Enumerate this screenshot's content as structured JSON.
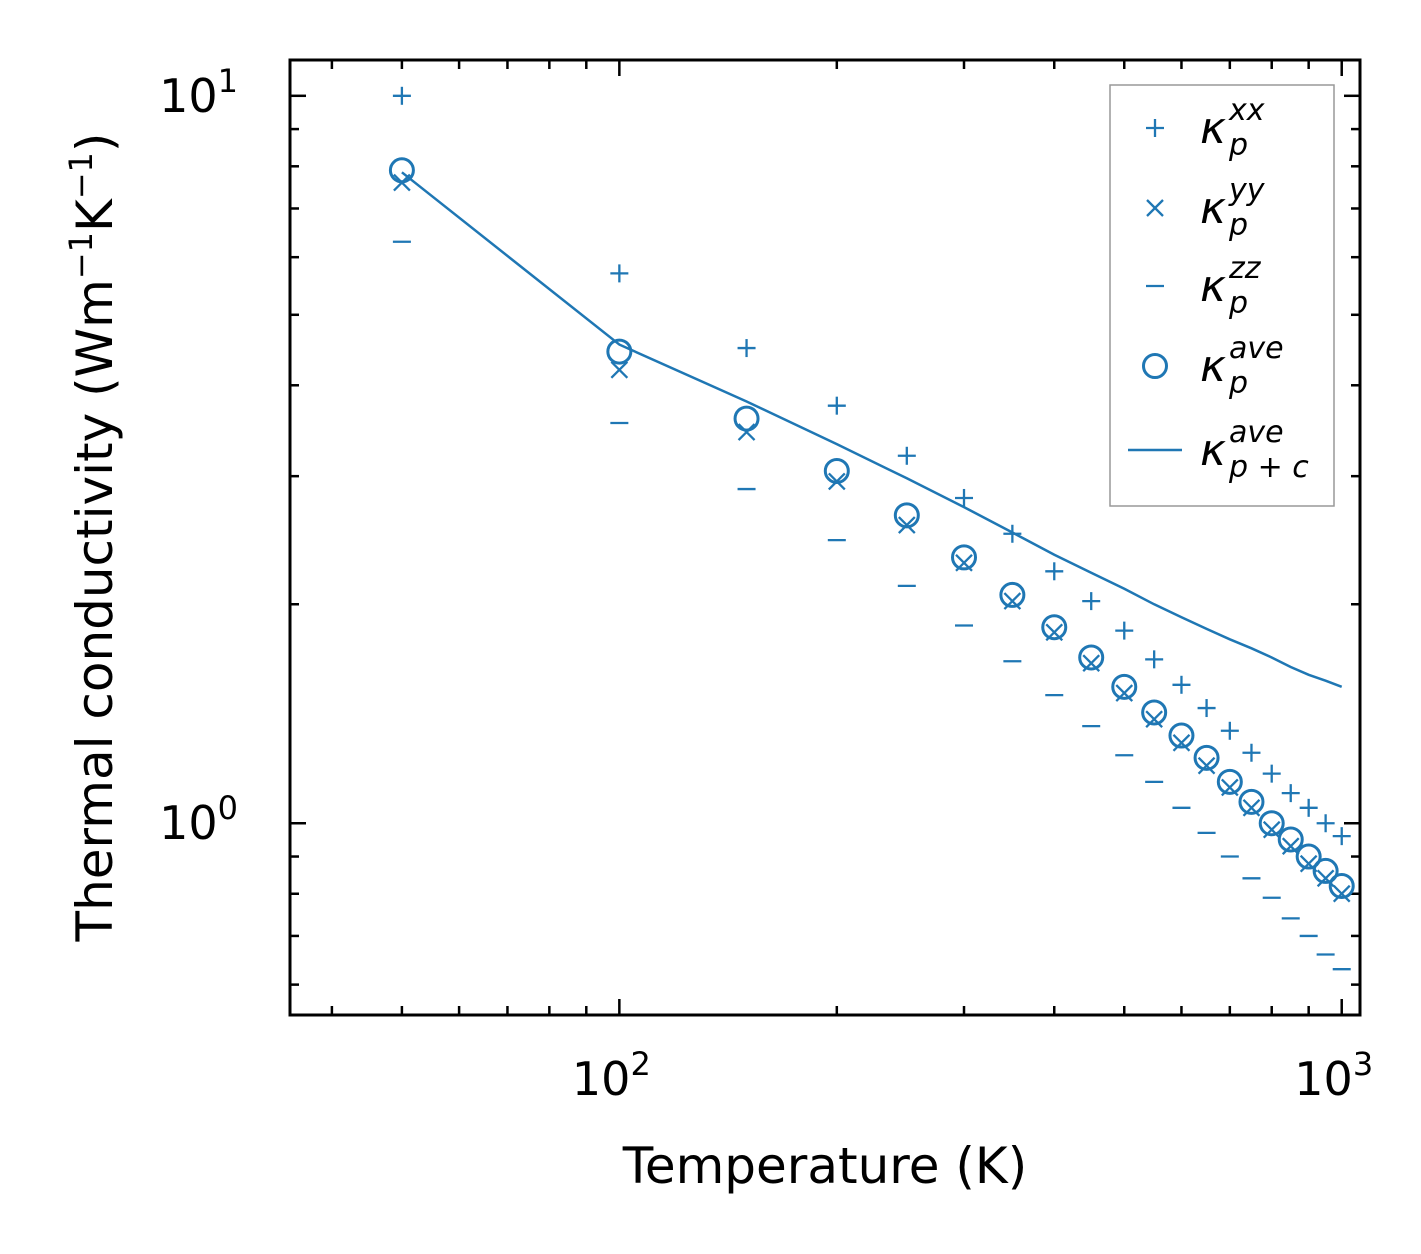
{
  "chart_data": {
    "type": "scatter",
    "title": "",
    "xlabel": "Temperature (K)",
    "ylabel": {
      "main": "Thermal conductivity (Wm",
      "exp1": "−1",
      "mid": "K",
      "exp2": "−1",
      "end": ")"
    },
    "xscale": "log",
    "yscale": "log",
    "xlim": [
      35,
      1060
    ],
    "ylim": [
      0.545,
      11.2
    ],
    "xticks": [
      {
        "value": 100,
        "base": "10",
        "exp": "2"
      },
      {
        "value": 1000,
        "base": "10",
        "exp": "3"
      }
    ],
    "yticks": [
      {
        "value": 1,
        "base": "10",
        "exp": "0"
      },
      {
        "value": 10,
        "base": "10",
        "exp": "1"
      }
    ],
    "grid": false,
    "legend_position": "top-right",
    "color": "#1f77b4",
    "x": [
      50,
      100,
      150,
      200,
      250,
      300,
      350,
      400,
      450,
      500,
      550,
      600,
      650,
      700,
      750,
      800,
      850,
      900,
      950,
      1000
    ],
    "series": [
      {
        "name": "kappa_p^xx",
        "legend": {
          "symbol": "κ",
          "sub": "p",
          "sup": "xx"
        },
        "marker": "plus",
        "values": [
          10.0,
          5.7,
          4.5,
          3.75,
          3.2,
          2.8,
          2.5,
          2.22,
          2.02,
          1.84,
          1.68,
          1.55,
          1.44,
          1.34,
          1.25,
          1.17,
          1.1,
          1.05,
          1.0,
          0.96
        ]
      },
      {
        "name": "kappa_p^yy",
        "legend": {
          "symbol": "κ",
          "sub": "p",
          "sup": "yy"
        },
        "marker": "x",
        "values": [
          7.6,
          4.2,
          3.45,
          2.95,
          2.57,
          2.28,
          2.02,
          1.83,
          1.66,
          1.51,
          1.39,
          1.29,
          1.2,
          1.12,
          1.05,
          0.98,
          0.93,
          0.88,
          0.84,
          0.8
        ]
      },
      {
        "name": "kappa_p^zz",
        "legend": {
          "symbol": "κ",
          "sub": "p",
          "sup": "zz"
        },
        "marker": "hline",
        "values": [
          6.3,
          3.55,
          2.88,
          2.45,
          2.12,
          1.87,
          1.67,
          1.5,
          1.36,
          1.24,
          1.14,
          1.05,
          0.97,
          0.9,
          0.84,
          0.79,
          0.74,
          0.7,
          0.66,
          0.63
        ]
      },
      {
        "name": "kappa_p^ave",
        "legend": {
          "symbol": "κ",
          "sub": "p",
          "sup": "ave"
        },
        "marker": "circle",
        "values": [
          7.9,
          4.45,
          3.6,
          3.05,
          2.65,
          2.32,
          2.06,
          1.86,
          1.69,
          1.54,
          1.42,
          1.32,
          1.23,
          1.14,
          1.07,
          1.0,
          0.95,
          0.9,
          0.86,
          0.82
        ]
      },
      {
        "name": "kappa_p+c^ave",
        "legend": {
          "symbol": "κ",
          "sub": "p + c",
          "sup": "ave"
        },
        "marker": "line",
        "values": [
          7.85,
          4.55,
          3.8,
          3.32,
          2.98,
          2.72,
          2.51,
          2.34,
          2.21,
          2.1,
          2.0,
          1.92,
          1.85,
          1.79,
          1.74,
          1.69,
          1.64,
          1.6,
          1.57,
          1.54
        ]
      }
    ]
  }
}
